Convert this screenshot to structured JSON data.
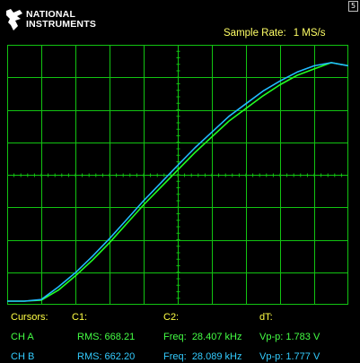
{
  "logo": {
    "line1": "NATIONAL",
    "line2": "INSTRUMENTS"
  },
  "corner_icon": "5",
  "sample_rate": {
    "label": "Sample Rate:",
    "value": "1 MS/s"
  },
  "colors": {
    "grid": "#12c412",
    "channel_a": "#22ff22",
    "channel_b": "#22bbff",
    "label_yellow": "#ffff44"
  },
  "readouts": {
    "cursors_label": "Cursors:",
    "c1_label": "C1:",
    "c2_label": "C2:",
    "dt_label": "dT:",
    "ch_a": {
      "name": "CH A",
      "rms": "RMS: 668.21",
      "freq_label": "Freq:",
      "freq_value": "28.407 kHz",
      "vpp_label": "Vp-p:",
      "vpp_value": "1.783 V"
    },
    "ch_b": {
      "name": "CH B",
      "rms": "RMS: 662.20",
      "freq_label": "Freq:",
      "freq_value": "28.089 kHz",
      "vpp_label": "Vp-p:",
      "vpp_value": "1.777 V"
    }
  },
  "chart_data": {
    "type": "line",
    "grid": true,
    "x": [
      0,
      0.5,
      1,
      1.5,
      2,
      2.5,
      3,
      3.5,
      4,
      4.5,
      5,
      5.5,
      6,
      6.5,
      7,
      7.5,
      8,
      8.5,
      9,
      9.5,
      10
    ],
    "series": [
      {
        "color": "#22ff22",
        "values": [
          0,
          0,
          0.03,
          0.35,
          0.8,
          1.3,
          1.85,
          2.45,
          3.05,
          3.6,
          4.15,
          4.7,
          5.2,
          5.7,
          6.1,
          6.5,
          6.85,
          7.15,
          7.35,
          7.55,
          7.45
        ]
      },
      {
        "color": "#22bbff",
        "values": [
          0,
          0,
          0.05,
          0.45,
          0.9,
          1.42,
          1.98,
          2.58,
          3.18,
          3.74,
          4.3,
          4.85,
          5.35,
          5.85,
          6.25,
          6.65,
          6.97,
          7.25,
          7.45,
          7.55,
          7.45
        ]
      }
    ]
  }
}
